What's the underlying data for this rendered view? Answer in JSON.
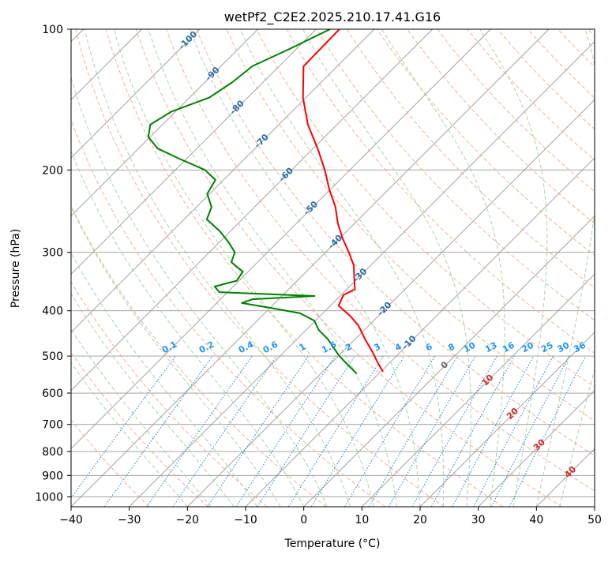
{
  "chart_data": {
    "type": "line",
    "diagram": "skew-t",
    "title": "wetPf2_C2E2.2025.210.17.41.G16",
    "xlabel": "Temperature (°C)",
    "ylabel": "Pressure (hPa)",
    "xlim": [
      -40,
      50
    ],
    "ylim": [
      1050,
      100
    ],
    "y_scale": "log",
    "grid": true,
    "x_ticks": [
      "−40",
      "−30",
      "−20",
      "−10",
      "0",
      "10",
      "20",
      "30",
      "40",
      "50"
    ],
    "y_ticks": [
      {
        "p": 100,
        "label": "100"
      },
      {
        "p": 200,
        "label": "200"
      },
      {
        "p": 300,
        "label": "300"
      },
      {
        "p": 400,
        "label": "400"
      },
      {
        "p": 500,
        "label": "500"
      },
      {
        "p": 600,
        "label": "600"
      },
      {
        "p": 700,
        "label": "700"
      },
      {
        "p": 800,
        "label": "800"
      },
      {
        "p": 900,
        "label": "900"
      },
      {
        "p": 1000,
        "label": "1000"
      }
    ],
    "colors": {
      "temperature": "#ff0000",
      "dewpoint": "#008000",
      "isotherm": "#999999",
      "isobar": "#999999",
      "dry_adiabat": "#f4a582",
      "moist_adiabat": "#9fd29f",
      "mixing_ratio": "#2f8fd8",
      "temp_label": "#2b6fa8",
      "mixing_label": "#2196f3",
      "adiabat_label": "#d62728"
    },
    "series": [
      {
        "key": "temperature",
        "points": [
          {
            "p": 100,
            "t": -76.0
          },
          {
            "p": 120,
            "t": -75.8
          },
          {
            "p": 140,
            "t": -70.5
          },
          {
            "p": 160,
            "t": -65.0
          },
          {
            "p": 180,
            "t": -59.2
          },
          {
            "p": 200,
            "t": -54.3
          },
          {
            "p": 220,
            "t": -50.2
          },
          {
            "p": 240,
            "t": -46.1
          },
          {
            "p": 260,
            "t": -42.9
          },
          {
            "p": 280,
            "t": -39.5
          },
          {
            "p": 300,
            "t": -36.0
          },
          {
            "p": 320,
            "t": -32.9
          },
          {
            "p": 340,
            "t": -30.7
          },
          {
            "p": 360,
            "t": -28.6
          },
          {
            "p": 370,
            "t": -29.6
          },
          {
            "p": 390,
            "t": -28.6
          },
          {
            "p": 410,
            "t": -24.9
          },
          {
            "p": 430,
            "t": -21.8
          },
          {
            "p": 460,
            "t": -18.3
          },
          {
            "p": 490,
            "t": -14.8
          },
          {
            "p": 520,
            "t": -11.7
          },
          {
            "p": 540,
            "t": -9.6
          }
        ]
      },
      {
        "key": "dewpoint",
        "points": [
          {
            "p": 100,
            "t": -77.6
          },
          {
            "p": 110,
            "t": -81.1
          },
          {
            "p": 120,
            "t": -84.6
          },
          {
            "p": 130,
            "t": -85.3
          },
          {
            "p": 140,
            "t": -86.6
          },
          {
            "p": 150,
            "t": -90.7
          },
          {
            "p": 160,
            "t": -92.1
          },
          {
            "p": 170,
            "t": -90.3
          },
          {
            "p": 180,
            "t": -86.7
          },
          {
            "p": 190,
            "t": -80.8
          },
          {
            "p": 200,
            "t": -74.9
          },
          {
            "p": 210,
            "t": -71.4
          },
          {
            "p": 225,
            "t": -70.4
          },
          {
            "p": 240,
            "t": -67.4
          },
          {
            "p": 255,
            "t": -66.1
          },
          {
            "p": 270,
            "t": -61.9
          },
          {
            "p": 285,
            "t": -58.5
          },
          {
            "p": 300,
            "t": -55.6
          },
          {
            "p": 315,
            "t": -54.5
          },
          {
            "p": 330,
            "t": -50.9
          },
          {
            "p": 345,
            "t": -50.4
          },
          {
            "p": 355,
            "t": -53.2
          },
          {
            "p": 365,
            "t": -51.4
          },
          {
            "p": 372,
            "t": -34.4
          },
          {
            "p": 378,
            "t": -44.5
          },
          {
            "p": 385,
            "t": -45.7
          },
          {
            "p": 395,
            "t": -39.5
          },
          {
            "p": 405,
            "t": -33.9
          },
          {
            "p": 420,
            "t": -30.2
          },
          {
            "p": 440,
            "t": -27.8
          },
          {
            "p": 460,
            "t": -24.7
          },
          {
            "p": 480,
            "t": -22.2
          },
          {
            "p": 500,
            "t": -19.8
          },
          {
            "p": 520,
            "t": -17.1
          },
          {
            "p": 545,
            "t": -13.8
          }
        ]
      }
    ],
    "isotherm_labels": [
      {
        "t": -100,
        "label": "-100"
      },
      {
        "t": -90,
        "label": "-90"
      },
      {
        "t": -80,
        "label": "-80"
      },
      {
        "t": -70,
        "label": "-70"
      },
      {
        "t": -60,
        "label": "-60"
      },
      {
        "t": -50,
        "label": "-50"
      },
      {
        "t": -40,
        "label": "-40"
      },
      {
        "t": -30,
        "label": "-30"
      },
      {
        "t": -20,
        "label": "-20"
      },
      {
        "t": -10,
        "label": "-10"
      },
      {
        "t": 0,
        "label": "0"
      },
      {
        "t": 10,
        "label": "10"
      },
      {
        "t": 20,
        "label": "20"
      },
      {
        "t": 30,
        "label": "30"
      },
      {
        "t": 40,
        "label": "40"
      }
    ],
    "mixing_ratio_labels": [
      "0.1",
      "0.2",
      "0.4",
      "0.6",
      "1",
      "1.5",
      "2",
      "3",
      "4",
      "6",
      "8",
      "10",
      "13",
      "16",
      "20",
      "25",
      "30",
      "36"
    ]
  }
}
